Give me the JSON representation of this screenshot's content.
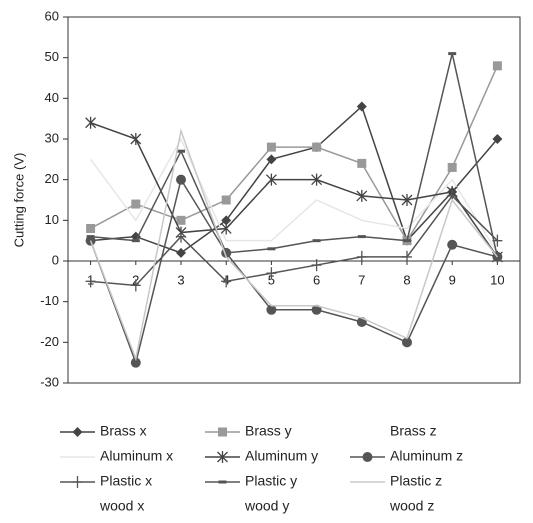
{
  "chart_data": {
    "type": "line",
    "y_label": "Cutting force (V)",
    "categories": [
      "1",
      "2",
      "3",
      "4",
      "5",
      "6",
      "7",
      "8",
      "9",
      "10"
    ],
    "ylim": [
      -30,
      60
    ],
    "yticks": [
      -30,
      -20,
      -10,
      0,
      10,
      20,
      30,
      40,
      50,
      60
    ],
    "series": [
      {
        "name": "Brass x",
        "color": "#444444",
        "marker": "diamond",
        "values": [
          5,
          6,
          2,
          10,
          25,
          28,
          38,
          5,
          17,
          30
        ]
      },
      {
        "name": "Brass y",
        "color": "#999999",
        "marker": "square",
        "values": [
          8,
          14,
          10,
          15,
          28,
          28,
          24,
          5,
          23,
          48
        ]
      },
      {
        "name": "Brass z",
        "color": "#ffffff",
        "marker": "none",
        "values": [
          null,
          null,
          null,
          null,
          null,
          null,
          null,
          null,
          null,
          null
        ]
      },
      {
        "name": "Aluminum x",
        "color": "#e6e6e6",
        "marker": "none",
        "values": [
          25,
          10,
          30,
          5,
          5,
          15,
          10,
          8,
          20,
          2
        ]
      },
      {
        "name": "Aluminum y",
        "color": "#444444",
        "marker": "asterisk",
        "values": [
          34,
          30,
          7,
          8,
          20,
          20,
          16,
          15,
          17,
          1
        ]
      },
      {
        "name": "Aluminum z",
        "color": "#555555",
        "marker": "circle",
        "values": [
          5,
          -25,
          20,
          2,
          -12,
          -12,
          -15,
          -20,
          4,
          1
        ]
      },
      {
        "name": "Plastic x",
        "color": "#555555",
        "marker": "plus",
        "values": [
          -5,
          -6,
          6,
          -5,
          -3,
          -1,
          1,
          1,
          16,
          5
        ]
      },
      {
        "name": "Plastic y",
        "color": "#555555",
        "marker": "dash",
        "values": [
          6,
          5,
          27,
          2,
          3,
          5,
          6,
          5,
          51,
          1
        ]
      },
      {
        "name": "Plastic z",
        "color": "#c8c8c8",
        "marker": "none",
        "values": [
          5,
          -24,
          32,
          1,
          -11,
          -11,
          -14,
          -19,
          15,
          1
        ]
      },
      {
        "name": "wood x",
        "color": "#ffffff",
        "marker": "none",
        "values": [
          null,
          null,
          null,
          null,
          null,
          null,
          null,
          null,
          null,
          null
        ]
      },
      {
        "name": "wood y",
        "color": "#ffffff",
        "marker": "none",
        "values": [
          null,
          null,
          null,
          null,
          null,
          null,
          null,
          null,
          null,
          null
        ]
      },
      {
        "name": "wood z",
        "color": "#ffffff",
        "marker": "none",
        "values": [
          null,
          null,
          null,
          null,
          null,
          null,
          null,
          null,
          null,
          null
        ]
      }
    ],
    "legend": "bottom"
  }
}
